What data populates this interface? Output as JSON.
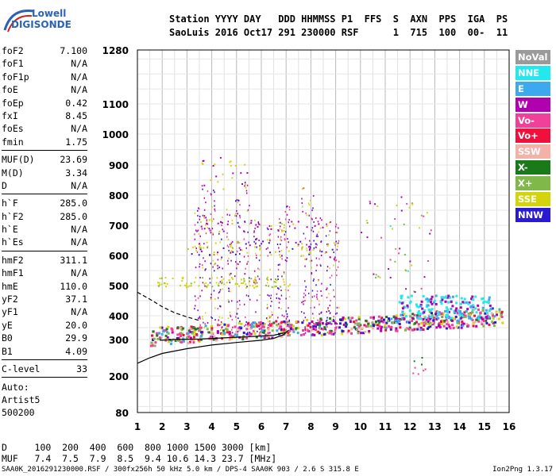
{
  "logo": {
    "line1": "Lowell",
    "line2": "DIGISONDE"
  },
  "header": {
    "line1": "Station YYYY DAY   DDD HHMMSS P1  FFS  S  AXN  PPS  IGA  PS",
    "line2": "SaoLuis 2016 Oct17 291 230000 RSF      1  715  100  00-  11"
  },
  "params": {
    "group1": [
      {
        "name": "foF2",
        "value": "7.100"
      },
      {
        "name": "foF1",
        "value": "N/A"
      },
      {
        "name": "foF1p",
        "value": "N/A"
      },
      {
        "name": "foE",
        "value": "N/A"
      },
      {
        "name": "foEp",
        "value": "0.42"
      },
      {
        "name": "fxI",
        "value": "8.45"
      },
      {
        "name": "foEs",
        "value": "N/A"
      },
      {
        "name": "fmin",
        "value": "1.75"
      }
    ],
    "group2": [
      {
        "name": "MUF(D)",
        "value": "23.69"
      },
      {
        "name": "M(D)",
        "value": "3.34"
      },
      {
        "name": "D",
        "value": "N/A"
      }
    ],
    "group3": [
      {
        "name": "h`F",
        "value": "285.0"
      },
      {
        "name": "h`F2",
        "value": "285.0"
      },
      {
        "name": "h`E",
        "value": "N/A"
      },
      {
        "name": "h`Es",
        "value": "N/A"
      }
    ],
    "group4": [
      {
        "name": "hmF2",
        "value": "311.1"
      },
      {
        "name": "hmF1",
        "value": "N/A"
      },
      {
        "name": "hmE",
        "value": "110.0"
      },
      {
        "name": "yF2",
        "value": "37.1"
      },
      {
        "name": "yF1",
        "value": "N/A"
      },
      {
        "name": "yE",
        "value": "20.0"
      },
      {
        "name": "B0",
        "value": "29.9"
      },
      {
        "name": "B1",
        "value": "4.09"
      }
    ],
    "group5": [
      {
        "name": "C-level",
        "value": "33"
      }
    ]
  },
  "auto": {
    "line1": "Auto:",
    "line2": "Artist5",
    "line3": "500200"
  },
  "legend": [
    {
      "label": "NoVal",
      "color": "#9a9a9a"
    },
    {
      "label": "NNE",
      "color": "#22e8f0"
    },
    {
      "label": "E",
      "color": "#3ca8ee"
    },
    {
      "label": "W",
      "color": "#b000b0"
    },
    {
      "label": "Vo-",
      "color": "#f0409a"
    },
    {
      "label": "Vo+",
      "color": "#f0103c"
    },
    {
      "label": "SSW",
      "color": "#f5b0a8"
    },
    {
      "label": "X-",
      "color": "#1a7a1a"
    },
    {
      "label": "X+",
      "color": "#80b84a"
    },
    {
      "label": "SSE",
      "color": "#d4d40c"
    },
    {
      "label": "NNW",
      "color": "#2a1ad0"
    }
  ],
  "dmuf": {
    "line1": "D     100  200  400  600  800 1000 1500 3000 [km]",
    "line2": "MUF   7.4  7.5  7.9  8.5  9.4 10.6 14.3 23.7 [MHz]"
  },
  "footer": {
    "left": "SAA0K_2016291230000.RSF / 300fx256h 50 kHz 5.0 km / DPS-4 SAA0K 903 / 2.6 S 315.8 E",
    "right": "Ion2Png 1.3.17"
  },
  "chart_data": {
    "type": "scatter",
    "x_ticks": [
      "1",
      "2",
      "3",
      "4",
      "5",
      "6",
      "7",
      "8",
      "9",
      "10",
      "11",
      "12",
      "13",
      "14",
      "15",
      "16"
    ],
    "y_ticks": [
      "80",
      "200",
      "300",
      "400",
      "500",
      "600",
      "700",
      "800",
      "900",
      "1000",
      "1100",
      "1280"
    ],
    "xlim": [
      1,
      16
    ],
    "ylim": [
      80,
      1280
    ],
    "grid": true,
    "legend_position": "right",
    "traces": [
      {
        "name": "NNE",
        "color": "#22e8f0",
        "x_range": [
          12.0,
          15.3
        ],
        "y_range": [
          390,
          470
        ]
      },
      {
        "name": "W",
        "color": "#b000b0",
        "x_range": [
          3.2,
          9.2
        ],
        "y_range": [
          330,
          900
        ]
      },
      {
        "name": "Vo-",
        "color": "#f0409a",
        "x_range": [
          1.5,
          15.8
        ],
        "y_range": [
          290,
          440
        ]
      },
      {
        "name": "Vo+",
        "color": "#f0103c",
        "x_range": [
          1.5,
          15.8
        ],
        "y_range": [
          300,
          420
        ]
      },
      {
        "name": "X-",
        "color": "#1a7a1a",
        "x_range": [
          1.6,
          15.5
        ],
        "y_range": [
          300,
          420
        ]
      },
      {
        "name": "X+",
        "color": "#80b84a",
        "x_range": [
          1.6,
          15.5
        ],
        "y_range": [
          300,
          420
        ]
      },
      {
        "name": "SSE",
        "color": "#d4d40c",
        "x_range": [
          1.7,
          9.0
        ],
        "y_range": [
          490,
          940
        ]
      },
      {
        "name": "NNW",
        "color": "#2a1ad0",
        "x_range": [
          1.8,
          12.0
        ],
        "y_range": [
          290,
          420
        ]
      }
    ],
    "profile_curve": {
      "x": [
        1.0,
        1.5,
        2.0,
        3.0,
        4.0,
        5.0,
        6.0,
        6.5,
        6.9,
        7.1
      ],
      "y": [
        235,
        250,
        262,
        275,
        285,
        292,
        298,
        305,
        320,
        340
      ]
    },
    "profile_curve_dashed": {
      "x": [
        1.0,
        1.5,
        2.0,
        2.5,
        3.0,
        3.5
      ],
      "y": [
        478,
        455,
        430,
        410,
        395,
        380
      ]
    },
    "trace_line": {
      "x": [
        1.9,
        2.5,
        3.5,
        4.5,
        5.5,
        6.5,
        7.0
      ],
      "y": [
        298,
        300,
        302,
        307,
        312,
        318,
        330
      ]
    }
  }
}
